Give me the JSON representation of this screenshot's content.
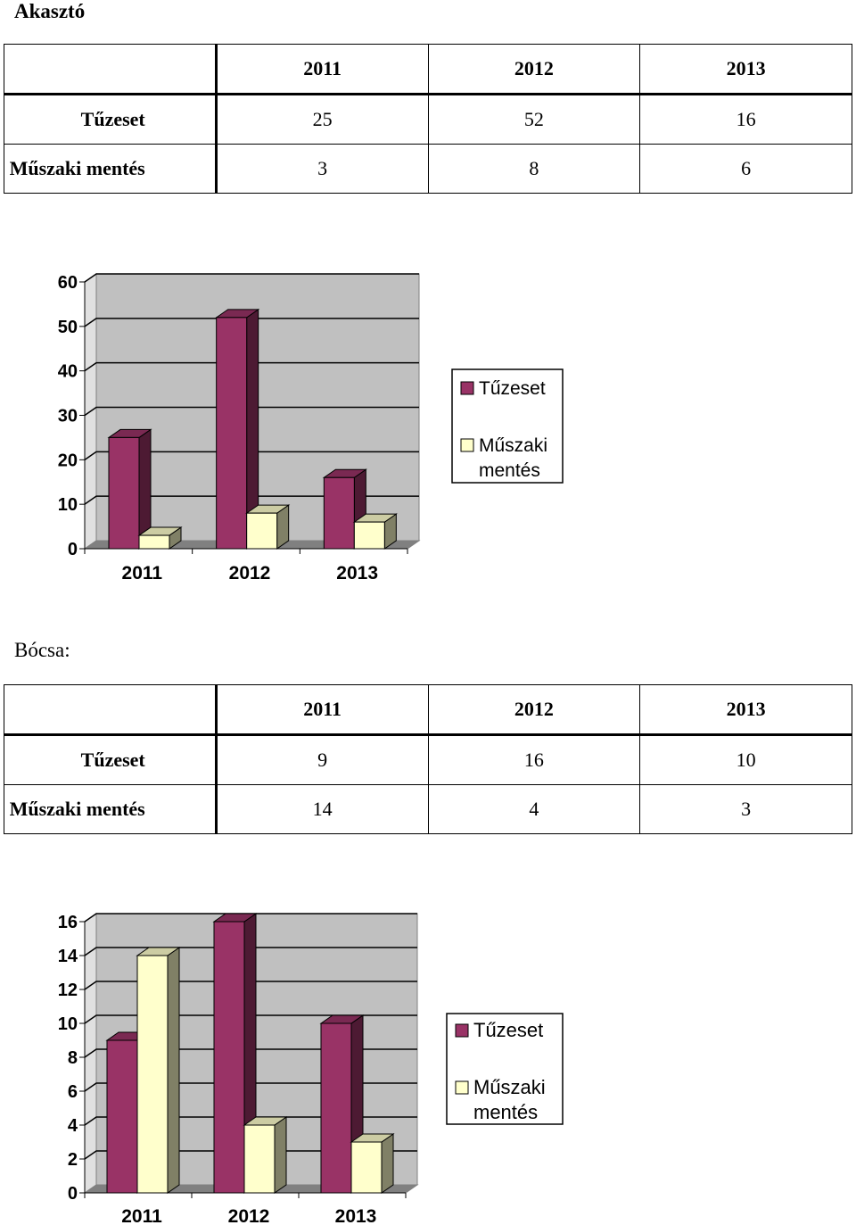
{
  "sections": [
    {
      "title": "Akasztó",
      "table": {
        "years": [
          "2011",
          "2012",
          "2013"
        ],
        "rows": [
          {
            "label": "Tűzeset",
            "values": [
              "25",
              "52",
              "16"
            ]
          },
          {
            "label": "Műszaki mentés",
            "values": [
              "3",
              "8",
              "6"
            ]
          }
        ]
      }
    },
    {
      "title": "Bócsa:",
      "table": {
        "years": [
          "2011",
          "2012",
          "2013"
        ],
        "rows": [
          {
            "label": "Tűzeset",
            "values": [
              "9",
              "16",
              "10"
            ]
          },
          {
            "label": "Műszaki mentés",
            "values": [
              "14",
              "4",
              "3"
            ]
          }
        ]
      }
    }
  ],
  "chart_data": [
    {
      "type": "bar",
      "categories": [
        "2011",
        "2012",
        "2013"
      ],
      "series": [
        {
          "name": "Tűzeset",
          "values": [
            25,
            52,
            16
          ]
        },
        {
          "name": "Műszaki mentés",
          "values": [
            3,
            8,
            6
          ]
        }
      ],
      "ylim": [
        0,
        60
      ],
      "yticks": [
        "0",
        "10",
        "20",
        "30",
        "40",
        "50",
        "60"
      ],
      "grid": true,
      "legend": "right",
      "legend_labels": [
        [
          "Tűzeset"
        ],
        [
          "Műszaki",
          "mentés"
        ]
      ]
    },
    {
      "type": "bar",
      "categories": [
        "2011",
        "2012",
        "2013"
      ],
      "series": [
        {
          "name": "Tűzeset",
          "values": [
            9,
            16,
            10
          ]
        },
        {
          "name": "Műszaki mentés",
          "values": [
            14,
            4,
            3
          ]
        }
      ],
      "ylim": [
        0,
        16
      ],
      "yticks": [
        "0",
        "2",
        "4",
        "6",
        "8",
        "10",
        "12",
        "14",
        "16"
      ],
      "grid": true,
      "legend": "right",
      "legend_labels": [
        [
          "Tűzeset"
        ],
        [
          "Műszaki",
          "mentés"
        ]
      ]
    }
  ],
  "colors": {
    "series1": "#993366",
    "series1_side": "#4d1a33",
    "series1_top": "#7a2952",
    "series2": "#ffffcc",
    "series2_side": "#808066",
    "series2_top": "#cccca3",
    "plot_bg": "#c0c0c0",
    "wall_side": "#e0e0e0",
    "floor": "#808080"
  }
}
